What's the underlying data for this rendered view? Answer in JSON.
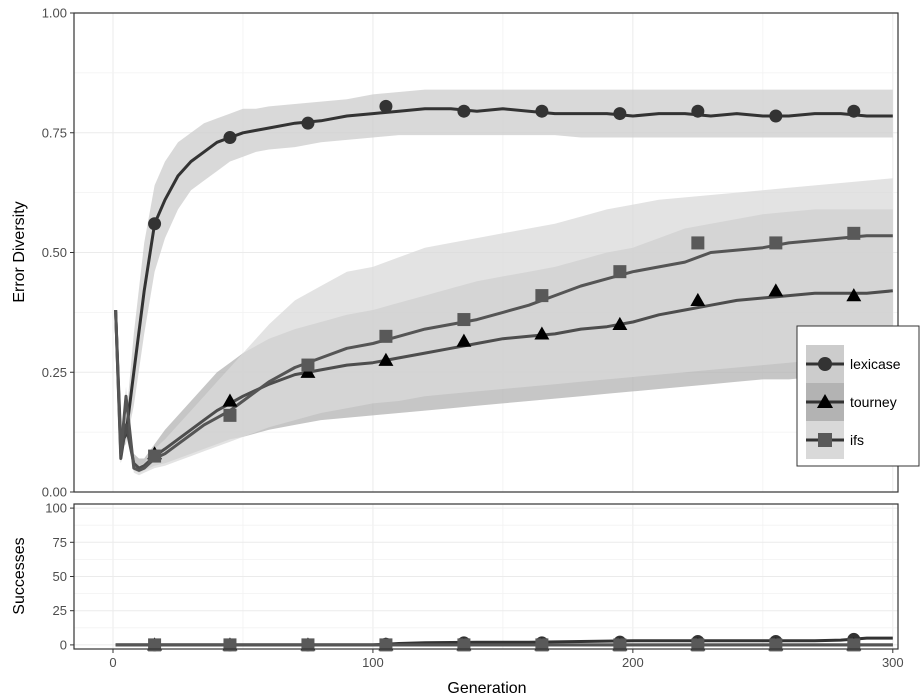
{
  "chart_data": [
    {
      "type": "line",
      "panel": "top",
      "xlabel": "",
      "ylabel": "Error Diversity",
      "xlim": [
        -15,
        302
      ],
      "ylim": [
        0,
        1
      ],
      "y_ticks": [
        "0.00",
        "0.25",
        "0.50",
        "0.75",
        "1.00"
      ],
      "grid": true,
      "legend_position": "right",
      "series": [
        {
          "name": "lexicase",
          "marker": "circle",
          "x": [
            1,
            3,
            5,
            8,
            12,
            16,
            20,
            25,
            30,
            35,
            40,
            45,
            50,
            55,
            60,
            70,
            80,
            90,
            100,
            110,
            120,
            130,
            140,
            150,
            160,
            170,
            180,
            190,
            200,
            210,
            220,
            230,
            240,
            250,
            260,
            270,
            280,
            290,
            300
          ],
          "mean": [
            0.38,
            0.1,
            0.12,
            0.25,
            0.42,
            0.56,
            0.61,
            0.66,
            0.69,
            0.71,
            0.73,
            0.74,
            0.75,
            0.755,
            0.76,
            0.77,
            0.775,
            0.785,
            0.79,
            0.795,
            0.8,
            0.8,
            0.795,
            0.8,
            0.795,
            0.79,
            0.79,
            0.79,
            0.785,
            0.79,
            0.79,
            0.785,
            0.79,
            0.785,
            0.785,
            0.79,
            0.79,
            0.785,
            0.785
          ],
          "lower": [
            0.38,
            0.09,
            0.1,
            0.18,
            0.33,
            0.46,
            0.53,
            0.59,
            0.63,
            0.65,
            0.67,
            0.69,
            0.7,
            0.71,
            0.715,
            0.72,
            0.73,
            0.735,
            0.74,
            0.745,
            0.745,
            0.745,
            0.745,
            0.745,
            0.745,
            0.745,
            0.74,
            0.74,
            0.74,
            0.74,
            0.74,
            0.74,
            0.74,
            0.74,
            0.74,
            0.74,
            0.74,
            0.74,
            0.74
          ],
          "upper": [
            0.38,
            0.11,
            0.15,
            0.33,
            0.52,
            0.64,
            0.69,
            0.73,
            0.75,
            0.77,
            0.78,
            0.79,
            0.8,
            0.8,
            0.805,
            0.81,
            0.815,
            0.82,
            0.83,
            0.835,
            0.84,
            0.84,
            0.84,
            0.84,
            0.84,
            0.84,
            0.84,
            0.84,
            0.84,
            0.84,
            0.84,
            0.84,
            0.84,
            0.84,
            0.84,
            0.84,
            0.84,
            0.84,
            0.84
          ],
          "markers": {
            "x": [
              16,
              45,
              75,
              105,
              135,
              165,
              195,
              225,
              255,
              285
            ],
            "y": [
              0.56,
              0.74,
              0.77,
              0.805,
              0.795,
              0.795,
              0.79,
              0.795,
              0.785,
              0.795
            ]
          }
        },
        {
          "name": "tourney",
          "marker": "triangle",
          "x": [
            1,
            3,
            5,
            8,
            10,
            12,
            16,
            20,
            25,
            30,
            35,
            40,
            45,
            50,
            60,
            70,
            80,
            90,
            100,
            110,
            120,
            130,
            140,
            150,
            160,
            170,
            180,
            190,
            200,
            210,
            220,
            230,
            240,
            250,
            260,
            270,
            280,
            290,
            300
          ],
          "mean": [
            0.38,
            0.07,
            0.14,
            0.06,
            0.05,
            0.055,
            0.075,
            0.09,
            0.11,
            0.13,
            0.15,
            0.17,
            0.185,
            0.2,
            0.225,
            0.245,
            0.255,
            0.265,
            0.27,
            0.28,
            0.29,
            0.3,
            0.31,
            0.32,
            0.325,
            0.33,
            0.34,
            0.345,
            0.355,
            0.37,
            0.38,
            0.39,
            0.4,
            0.405,
            0.41,
            0.415,
            0.415,
            0.415,
            0.42
          ],
          "lower": [
            0.38,
            0.06,
            0.12,
            0.045,
            0.04,
            0.045,
            0.055,
            0.06,
            0.07,
            0.08,
            0.09,
            0.1,
            0.11,
            0.115,
            0.13,
            0.14,
            0.15,
            0.155,
            0.16,
            0.165,
            0.17,
            0.175,
            0.18,
            0.185,
            0.19,
            0.195,
            0.2,
            0.205,
            0.21,
            0.215,
            0.22,
            0.225,
            0.23,
            0.235,
            0.235,
            0.24,
            0.24,
            0.24,
            0.245
          ],
          "upper": [
            0.38,
            0.08,
            0.16,
            0.08,
            0.07,
            0.07,
            0.1,
            0.13,
            0.16,
            0.19,
            0.22,
            0.25,
            0.27,
            0.29,
            0.32,
            0.34,
            0.355,
            0.37,
            0.38,
            0.395,
            0.41,
            0.425,
            0.44,
            0.45,
            0.46,
            0.47,
            0.485,
            0.5,
            0.51,
            0.53,
            0.55,
            0.56,
            0.57,
            0.58,
            0.585,
            0.59,
            0.59,
            0.59,
            0.59
          ],
          "markers": {
            "x": [
              16,
              45,
              75,
              105,
              135,
              165,
              195,
              225,
              255,
              285
            ],
            "y": [
              0.08,
              0.19,
              0.25,
              0.275,
              0.315,
              0.33,
              0.35,
              0.4,
              0.42,
              0.41
            ]
          }
        },
        {
          "name": "ifs",
          "marker": "square",
          "x": [
            1,
            3,
            5,
            8,
            10,
            12,
            16,
            20,
            25,
            30,
            35,
            40,
            45,
            50,
            60,
            70,
            80,
            90,
            100,
            110,
            120,
            130,
            140,
            150,
            160,
            170,
            180,
            190,
            200,
            210,
            220,
            230,
            240,
            250,
            260,
            270,
            280,
            290,
            300
          ],
          "mean": [
            0.38,
            0.08,
            0.2,
            0.05,
            0.045,
            0.05,
            0.07,
            0.08,
            0.1,
            0.12,
            0.14,
            0.155,
            0.17,
            0.19,
            0.23,
            0.26,
            0.28,
            0.3,
            0.31,
            0.325,
            0.34,
            0.35,
            0.36,
            0.375,
            0.39,
            0.41,
            0.43,
            0.445,
            0.46,
            0.47,
            0.48,
            0.5,
            0.505,
            0.51,
            0.52,
            0.525,
            0.53,
            0.535,
            0.535
          ],
          "lower": [
            0.38,
            0.07,
            0.18,
            0.04,
            0.035,
            0.04,
            0.05,
            0.055,
            0.065,
            0.075,
            0.085,
            0.095,
            0.105,
            0.115,
            0.135,
            0.15,
            0.165,
            0.175,
            0.185,
            0.19,
            0.2,
            0.205,
            0.21,
            0.215,
            0.22,
            0.225,
            0.23,
            0.235,
            0.24,
            0.245,
            0.25,
            0.255,
            0.26,
            0.265,
            0.27,
            0.275,
            0.28,
            0.28,
            0.285
          ],
          "upper": [
            0.38,
            0.09,
            0.22,
            0.06,
            0.055,
            0.06,
            0.09,
            0.11,
            0.14,
            0.17,
            0.2,
            0.23,
            0.26,
            0.29,
            0.35,
            0.4,
            0.43,
            0.46,
            0.47,
            0.49,
            0.51,
            0.52,
            0.53,
            0.54,
            0.55,
            0.56,
            0.575,
            0.59,
            0.6,
            0.61,
            0.615,
            0.62,
            0.625,
            0.63,
            0.635,
            0.64,
            0.645,
            0.65,
            0.655
          ],
          "markers": {
            "x": [
              16,
              45,
              75,
              105,
              135,
              165,
              195,
              225,
              255,
              285
            ],
            "y": [
              0.075,
              0.16,
              0.265,
              0.325,
              0.36,
              0.41,
              0.46,
              0.52,
              0.52,
              0.54
            ]
          }
        }
      ]
    },
    {
      "type": "line",
      "panel": "bottom",
      "xlabel": "Generation",
      "ylabel": "Successes",
      "xlim": [
        -15,
        302
      ],
      "ylim": [
        -3,
        103
      ],
      "x_ticks": [
        "0",
        "100",
        "200",
        "300"
      ],
      "y_ticks": [
        "0",
        "25",
        "50",
        "75",
        "100"
      ],
      "grid": true,
      "series": [
        {
          "name": "lexicase",
          "marker": "circle",
          "x": [
            1,
            100,
            110,
            120,
            140,
            160,
            180,
            200,
            220,
            240,
            260,
            270,
            280,
            290,
            300
          ],
          "y": [
            0,
            0,
            1,
            1.5,
            2,
            2,
            2.5,
            3,
            3,
            3,
            3,
            3,
            3.5,
            5,
            5
          ],
          "markers": {
            "x": [
              16,
              45,
              75,
              105,
              135,
              165,
              195,
              225,
              255,
              285
            ],
            "y": [
              0,
              0,
              0,
              0.5,
              1.5,
              1.5,
              2,
              2.5,
              2.5,
              4
            ]
          }
        },
        {
          "name": "tourney",
          "marker": "triangle",
          "x": [
            1,
            300
          ],
          "y": [
            0,
            0
          ],
          "markers": {
            "x": [
              16,
              45,
              75,
              105,
              135,
              165,
              195,
              225,
              255,
              285
            ],
            "y": [
              0,
              0,
              0,
              0,
              0,
              0,
              0,
              0,
              0,
              0
            ]
          }
        },
        {
          "name": "ifs",
          "marker": "square",
          "x": [
            1,
            300
          ],
          "y": [
            0,
            0
          ],
          "markers": {
            "x": [
              16,
              45,
              75,
              105,
              135,
              165,
              195,
              225,
              255,
              285
            ],
            "y": [
              0,
              0,
              0,
              0,
              0,
              0,
              0,
              0,
              0,
              0
            ]
          }
        }
      ]
    }
  ],
  "legend": {
    "items": [
      {
        "label": "lexicase",
        "marker": "circle"
      },
      {
        "label": "tourney",
        "marker": "triangle"
      },
      {
        "label": "ifs",
        "marker": "square"
      }
    ]
  },
  "colors": {
    "lexicase_line": "#333333",
    "tourney_line": "#4d4d4d",
    "ifs_line": "#555555",
    "lexicase_band": "#cccccc",
    "tourney_band": "#b3b3b3",
    "ifs_band": "#d9d9d9",
    "grid": "#ebebeb",
    "panel_border": "#333333"
  }
}
